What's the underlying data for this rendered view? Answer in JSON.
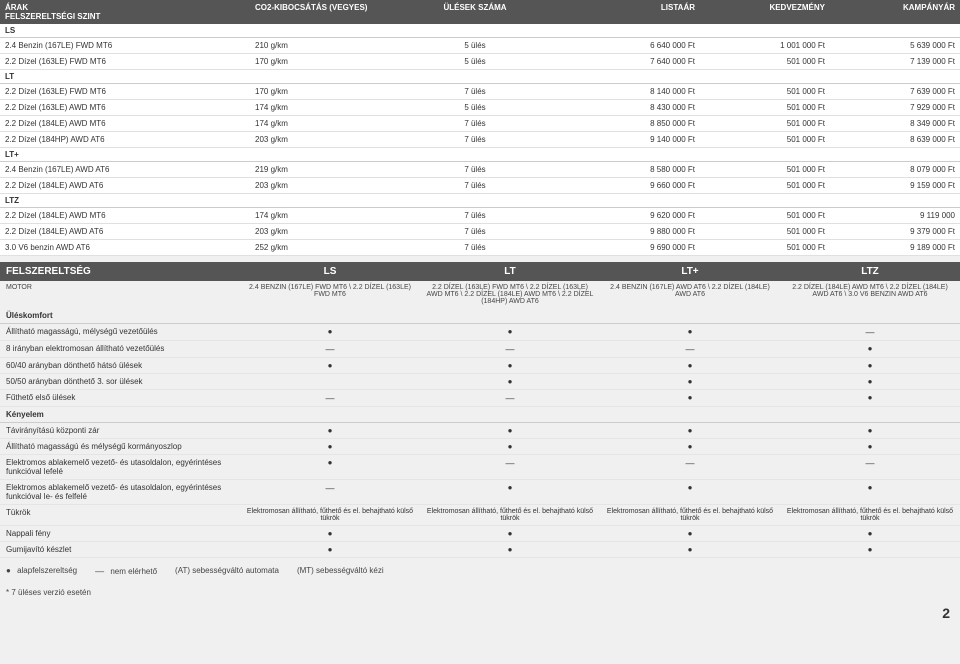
{
  "arak_title": "ÁRAK",
  "arak_headers": [
    "FELSZERELTSÉGI SZINT",
    "CO2-KIBOCSÁTÁS (VEGYES)",
    "ÜLÉSEK SZÁMA",
    "LISTAÁR",
    "KEDVEZMÉNY",
    "KAMPÁNYÁR"
  ],
  "arak_groups": [
    {
      "label": "LS",
      "rows": [
        {
          "c": [
            "2.4 Benzin (167LE) FWD MT6",
            "210 g/km",
            "5 ülés",
            "6 640 000 Ft",
            "1 001 000 Ft",
            "5 639 000 Ft"
          ]
        },
        {
          "c": [
            "2.2 Dízel (163LE) FWD MT6",
            "170 g/km",
            "5 ülés",
            "7 640 000 Ft",
            "501 000 Ft",
            "7 139 000 Ft"
          ]
        }
      ]
    },
    {
      "label": "LT",
      "rows": [
        {
          "c": [
            "2.2 Dízel (163LE) FWD MT6",
            "170 g/km",
            "7 ülés",
            "8 140 000 Ft",
            "501 000 Ft",
            "7 639 000 Ft"
          ]
        },
        {
          "c": [
            "2.2 Dízel (163LE) AWD MT6",
            "174 g/km",
            "5 ülés",
            "8 430 000 Ft",
            "501 000 Ft",
            "7 929 000 Ft"
          ]
        },
        {
          "c": [
            "2.2 Dízel (184LE) AWD MT6",
            "174 g/km",
            "7 ülés",
            "8 850 000 Ft",
            "501 000 Ft",
            "8 349 000 Ft"
          ]
        },
        {
          "c": [
            "2.2 Dízel (184HP) AWD AT6",
            "203 g/km",
            "7 ülés",
            "9 140 000 Ft",
            "501 000 Ft",
            "8 639 000 Ft"
          ]
        }
      ]
    },
    {
      "label": "LT+",
      "rows": [
        {
          "c": [
            "2.4 Benzin (167LE) AWD AT6",
            "219 g/km",
            "7 ülés",
            "8 580 000 Ft",
            "501 000 Ft",
            "8 079 000 Ft"
          ]
        },
        {
          "c": [
            "2.2 Dízel (184LE) AWD AT6",
            "203 g/km",
            "7 ülés",
            "9 660 000 Ft",
            "501 000 Ft",
            "9 159 000 Ft"
          ]
        }
      ]
    },
    {
      "label": "LTZ",
      "rows": [
        {
          "c": [
            "2.2 Dízel (184LE) AWD MT6",
            "174 g/km",
            "7 ülés",
            "9 620 000 Ft",
            "501 000 Ft",
            "9 119 000"
          ]
        },
        {
          "c": [
            "2.2 Dízel (184LE) AWD AT6",
            "203 g/km",
            "7 ülés",
            "9 880 000 Ft",
            "501 000 Ft",
            "9 379 000 Ft"
          ]
        },
        {
          "c": [
            "3.0 V6 benzin AWD AT6",
            "252 g/km",
            "7 ülés",
            "9 690 000 Ft",
            "501 000 Ft",
            "9 189 000 Ft"
          ]
        }
      ]
    }
  ],
  "felsz_title": "FELSZERELTSÉG",
  "felsz_cols": [
    "LS",
    "LT",
    "LT+",
    "LTZ"
  ],
  "motor_label": "MOTOR",
  "motor_sub": [
    "2.4 BENZIN (167LE) FWD MT6 \\ 2.2 DÍZEL (163LE) FWD MT6",
    "2.2 DÍZEL (163LE) FWD MT6 \\ 2.2 DÍZEL (163LE) AWD MT6 \\ 2.2 DÍZEL (184LE) AWD MT6 \\ 2.2 DÍZEL (184HP) AWD AT6",
    "2.4 BENZIN (167LE) AWD AT6 \\ 2.2 DÍZEL (184LE) AWD AT6",
    "2.2 DÍZEL (184LE) AWD MT6 \\ 2.2 DÍZEL (184LE) AWD AT6 \\ 3.0 V6 BENZIN AWD AT6"
  ],
  "cat_uleskomfort": "Üléskomfort",
  "rows_ules": [
    {
      "label": "Állítható magasságú, mélységű vezetőülés",
      "v": [
        "dot",
        "dot",
        "dot",
        "dash"
      ]
    },
    {
      "label": "8 irányban elektromosan állítható vezetőülés",
      "v": [
        "dash",
        "dash",
        "dash",
        "dot"
      ]
    },
    {
      "label": "60/40 arányban dönthető hátsó ülések",
      "v": [
        "dot",
        "dot",
        "dot",
        "dot"
      ]
    },
    {
      "label": "50/50 arányban dönthető 3. sor ülések",
      "v": [
        "",
        "dot",
        "dot",
        "dot"
      ]
    },
    {
      "label": "Fűthető első ülések",
      "v": [
        "dash",
        "dash",
        "dot",
        "dot"
      ]
    }
  ],
  "cat_kenyelem": "Kényelem",
  "rows_keny": [
    {
      "label": "Távirányítású központi zár",
      "v": [
        "dot",
        "dot",
        "dot",
        "dot"
      ]
    },
    {
      "label": "Állítható magasságú és mélységű kormányoszlop",
      "v": [
        "dot",
        "dot",
        "dot",
        "dot"
      ]
    },
    {
      "label": "Elektromos ablakemelő vezető- és utasoldalon, egyérintéses funkcióval lefelé",
      "v": [
        "dot",
        "dash",
        "dash",
        "dash"
      ]
    },
    {
      "label": "Elektromos ablakemelő vezető- és utasoldalon, egyérintéses funkcióval le- és felfelé",
      "v": [
        "dash",
        "dot",
        "dot",
        "dot"
      ]
    },
    {
      "label": "Tükrök",
      "v": [
        "text",
        "text",
        "text",
        "text"
      ],
      "t": [
        "Elektromosan állítható, fűthető és el. behajtható külső tükrök",
        "Elektromosan állítható, fűthető és el. behajtható külső tükrök",
        "Elektromosan állítható, fűthető és el. behajtható külső tükrök",
        "Elektromosan állítható, fűthető és el. behajtható külső tükrök"
      ]
    },
    {
      "label": "Nappali fény",
      "v": [
        "dot",
        "dot",
        "dot",
        "dot"
      ]
    },
    {
      "label": "Gumijavító készlet",
      "v": [
        "dot",
        "dot",
        "dot",
        "dot"
      ]
    }
  ],
  "legend": [
    {
      "glyph": "dot",
      "text": "alapfelszereltség"
    },
    {
      "glyph": "dash",
      "text": "nem elérhető"
    },
    {
      "glyph": "",
      "text": "(AT) sebességváltó automata"
    },
    {
      "glyph": "",
      "text": "(MT) sebességváltó kézi"
    }
  ],
  "footnote": "* 7 üléses verzió esetén",
  "page": "2",
  "colors": {
    "header_bg": "#555555",
    "header_fg": "#ffffff",
    "row_border": "#e0e0e0",
    "group_border": "#cccccc"
  }
}
